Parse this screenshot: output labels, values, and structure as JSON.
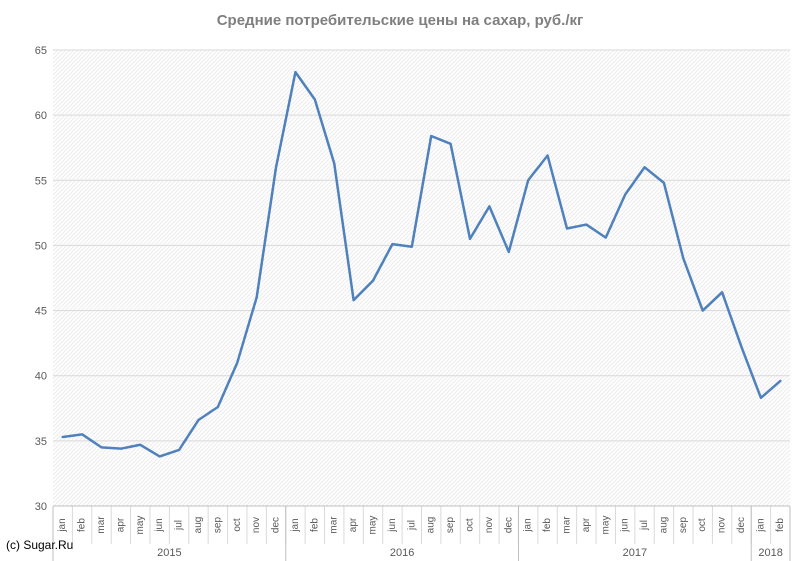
{
  "chart_data": {
    "type": "line",
    "title": "Средние потребительские цены на сахар, руб./кг",
    "credit": "(c) Sugar.Ru",
    "xlabel": "",
    "ylabel": "",
    "ylim": [
      30,
      65
    ],
    "yticks": [
      30,
      35,
      40,
      45,
      50,
      55,
      60,
      65
    ],
    "grid": true,
    "legend": "none",
    "colors": {
      "line": "#4f81bd",
      "grid": "#d9d9d9",
      "axis": "#bfbfbf"
    },
    "years": [
      {
        "label": "2015",
        "months": 12
      },
      {
        "label": "2016",
        "months": 12
      },
      {
        "label": "2017",
        "months": 12
      },
      {
        "label": "2018",
        "months": 2
      }
    ],
    "categories": [
      "jan",
      "feb",
      "mar",
      "apr",
      "may",
      "jun",
      "jul",
      "aug",
      "sep",
      "oct",
      "nov",
      "dec",
      "jan",
      "feb",
      "mar",
      "apr",
      "may",
      "jun",
      "jul",
      "aug",
      "sep",
      "oct",
      "nov",
      "dec",
      "jan",
      "feb",
      "mar",
      "apr",
      "may",
      "jun",
      "jul",
      "aug",
      "sep",
      "oct",
      "nov",
      "dec",
      "jan",
      "feb"
    ],
    "values": [
      35.3,
      35.5,
      34.5,
      34.4,
      34.7,
      33.8,
      34.3,
      36.6,
      37.6,
      41.0,
      46.0,
      56.0,
      63.3,
      61.2,
      56.3,
      45.8,
      47.3,
      50.1,
      49.9,
      58.4,
      57.8,
      50.5,
      53.0,
      49.5,
      55.0,
      56.9,
      51.3,
      51.6,
      50.6,
      53.9,
      56.0,
      54.8,
      49.0,
      45.0,
      46.4,
      42.2,
      38.3,
      39.6
    ]
  }
}
